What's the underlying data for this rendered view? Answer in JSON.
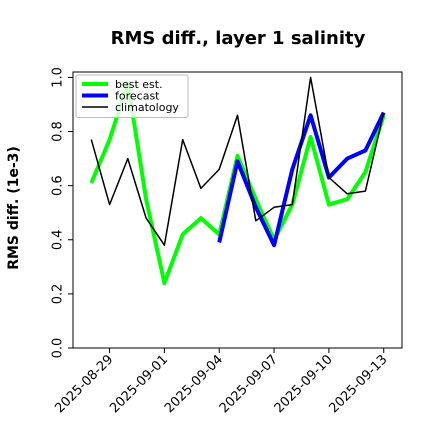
{
  "chart_data": {
    "type": "line",
    "title": "RMS diff., layer 1 salinity",
    "xlabel": "",
    "ylabel": "RMS diff. (1e-3)",
    "ylim": [
      0.0,
      1.02
    ],
    "yticks": [
      0.0,
      0.2,
      0.4,
      0.6,
      0.8,
      1.0
    ],
    "ytick_labels": [
      "0.0",
      "0.2",
      "0.4",
      "0.6",
      "0.8",
      "1.0"
    ],
    "xlim": [
      "2025-08-27",
      "2025-09-14"
    ],
    "xticks": [
      {
        "date": "2025-08-29",
        "label": "2025-08-29",
        "color": "#000000"
      },
      {
        "date": "2025-09-01",
        "label": "2025-09-01",
        "color": "#000000"
      },
      {
        "date": "2025-09-04",
        "label": "2025-09-04",
        "color": "#228B22"
      },
      {
        "date": "2025-09-07",
        "label": "2025-09-07",
        "color": "#000000"
      },
      {
        "date": "2025-09-10",
        "label": "2025-09-10",
        "color": "#000000"
      },
      {
        "date": "2025-09-13",
        "label": "2025-09-13",
        "color": "#000000"
      }
    ],
    "legend_position": "top-left",
    "grid": false,
    "series": [
      {
        "name": "best est.",
        "color": "#00ff00",
        "x": [
          "2025-08-28",
          "2025-08-29",
          "2025-08-30",
          "2025-08-31",
          "2025-09-01",
          "2025-09-02",
          "2025-09-03",
          "2025-09-04",
          "2025-09-05",
          "2025-09-06",
          "2025-09-07",
          "2025-09-08",
          "2025-09-09",
          "2025-09-10",
          "2025-09-11",
          "2025-09-12",
          "2025-09-13"
        ],
        "y": [
          0.61,
          0.77,
          0.98,
          0.55,
          0.24,
          0.42,
          0.48,
          0.42,
          0.71,
          0.55,
          0.4,
          0.53,
          0.78,
          0.53,
          0.55,
          0.65,
          0.86
        ]
      },
      {
        "name": "forecast",
        "color": "#0000ff",
        "x": [
          "2025-09-04",
          "2025-09-05",
          "2025-09-06",
          "2025-09-07",
          "2025-09-08",
          "2025-09-09",
          "2025-09-10",
          "2025-09-11",
          "2025-09-12",
          "2025-09-13"
        ],
        "y": [
          0.39,
          0.69,
          0.52,
          0.38,
          0.66,
          0.86,
          0.63,
          0.7,
          0.73,
          0.87
        ]
      },
      {
        "name": "climatology",
        "color": "#000000",
        "x": [
          "2025-08-28",
          "2025-08-29",
          "2025-08-30",
          "2025-08-31",
          "2025-09-01",
          "2025-09-02",
          "2025-09-03",
          "2025-09-04",
          "2025-09-05",
          "2025-09-06",
          "2025-09-07",
          "2025-09-08",
          "2025-09-09",
          "2025-09-10",
          "2025-09-11",
          "2025-09-12",
          "2025-09-13"
        ],
        "y": [
          0.77,
          0.53,
          0.7,
          0.48,
          0.38,
          0.77,
          0.59,
          0.66,
          0.86,
          0.47,
          0.52,
          0.53,
          1.0,
          0.63,
          0.57,
          0.58,
          0.87
        ]
      }
    ]
  }
}
